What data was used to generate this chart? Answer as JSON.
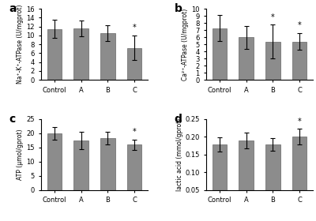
{
  "panel_a": {
    "label": "a",
    "ylabel": "Na⁺-K⁺-ATPase (U/mgprot)",
    "categories": [
      "Control",
      "A",
      "B",
      "C"
    ],
    "values": [
      11.5,
      11.6,
      10.5,
      7.2
    ],
    "errors": [
      2.0,
      1.8,
      1.8,
      2.8
    ],
    "ylim": [
      0,
      16
    ],
    "yticks": [
      0,
      2,
      4,
      6,
      8,
      10,
      12,
      14,
      16
    ],
    "sig": [
      false,
      false,
      false,
      true
    ]
  },
  "panel_b": {
    "label": "b",
    "ylabel": "Ca²⁺-ATPase (U/mgprot)",
    "categories": [
      "Control",
      "A",
      "B",
      "C"
    ],
    "values": [
      7.3,
      6.0,
      5.4,
      5.4
    ],
    "errors": [
      1.8,
      1.6,
      2.4,
      1.2
    ],
    "ylim": [
      0,
      10
    ],
    "yticks": [
      0,
      1,
      2,
      3,
      4,
      5,
      6,
      7,
      8,
      9,
      10
    ],
    "sig": [
      false,
      false,
      true,
      true
    ]
  },
  "panel_c": {
    "label": "c",
    "ylabel": "ATP (μmol/gprot)",
    "categories": [
      "Control",
      "A",
      "B",
      "C"
    ],
    "values": [
      20.0,
      17.5,
      18.3,
      16.0
    ],
    "errors": [
      2.2,
      3.0,
      2.2,
      1.8
    ],
    "ylim": [
      0,
      25
    ],
    "yticks": [
      0,
      5,
      10,
      15,
      20,
      25
    ],
    "sig": [
      false,
      false,
      false,
      true
    ]
  },
  "panel_d": {
    "label": "d",
    "ylabel": "lactic acid (mmol/gprot)",
    "categories": [
      "Control",
      "A",
      "B",
      "C"
    ],
    "values": [
      0.178,
      0.19,
      0.178,
      0.2
    ],
    "errors": [
      0.02,
      0.022,
      0.018,
      0.022
    ],
    "ylim": [
      0.05,
      0.25
    ],
    "yticks": [
      0.05,
      0.1,
      0.15,
      0.2,
      0.25
    ],
    "sig": [
      false,
      false,
      false,
      true
    ]
  },
  "bar_color": "#8c8c8c",
  "bar_edge_color": "#666666",
  "background_color": "#ffffff",
  "tick_fontsize": 6,
  "ylabel_fontsize": 5.5,
  "panel_label_fontsize": 10
}
